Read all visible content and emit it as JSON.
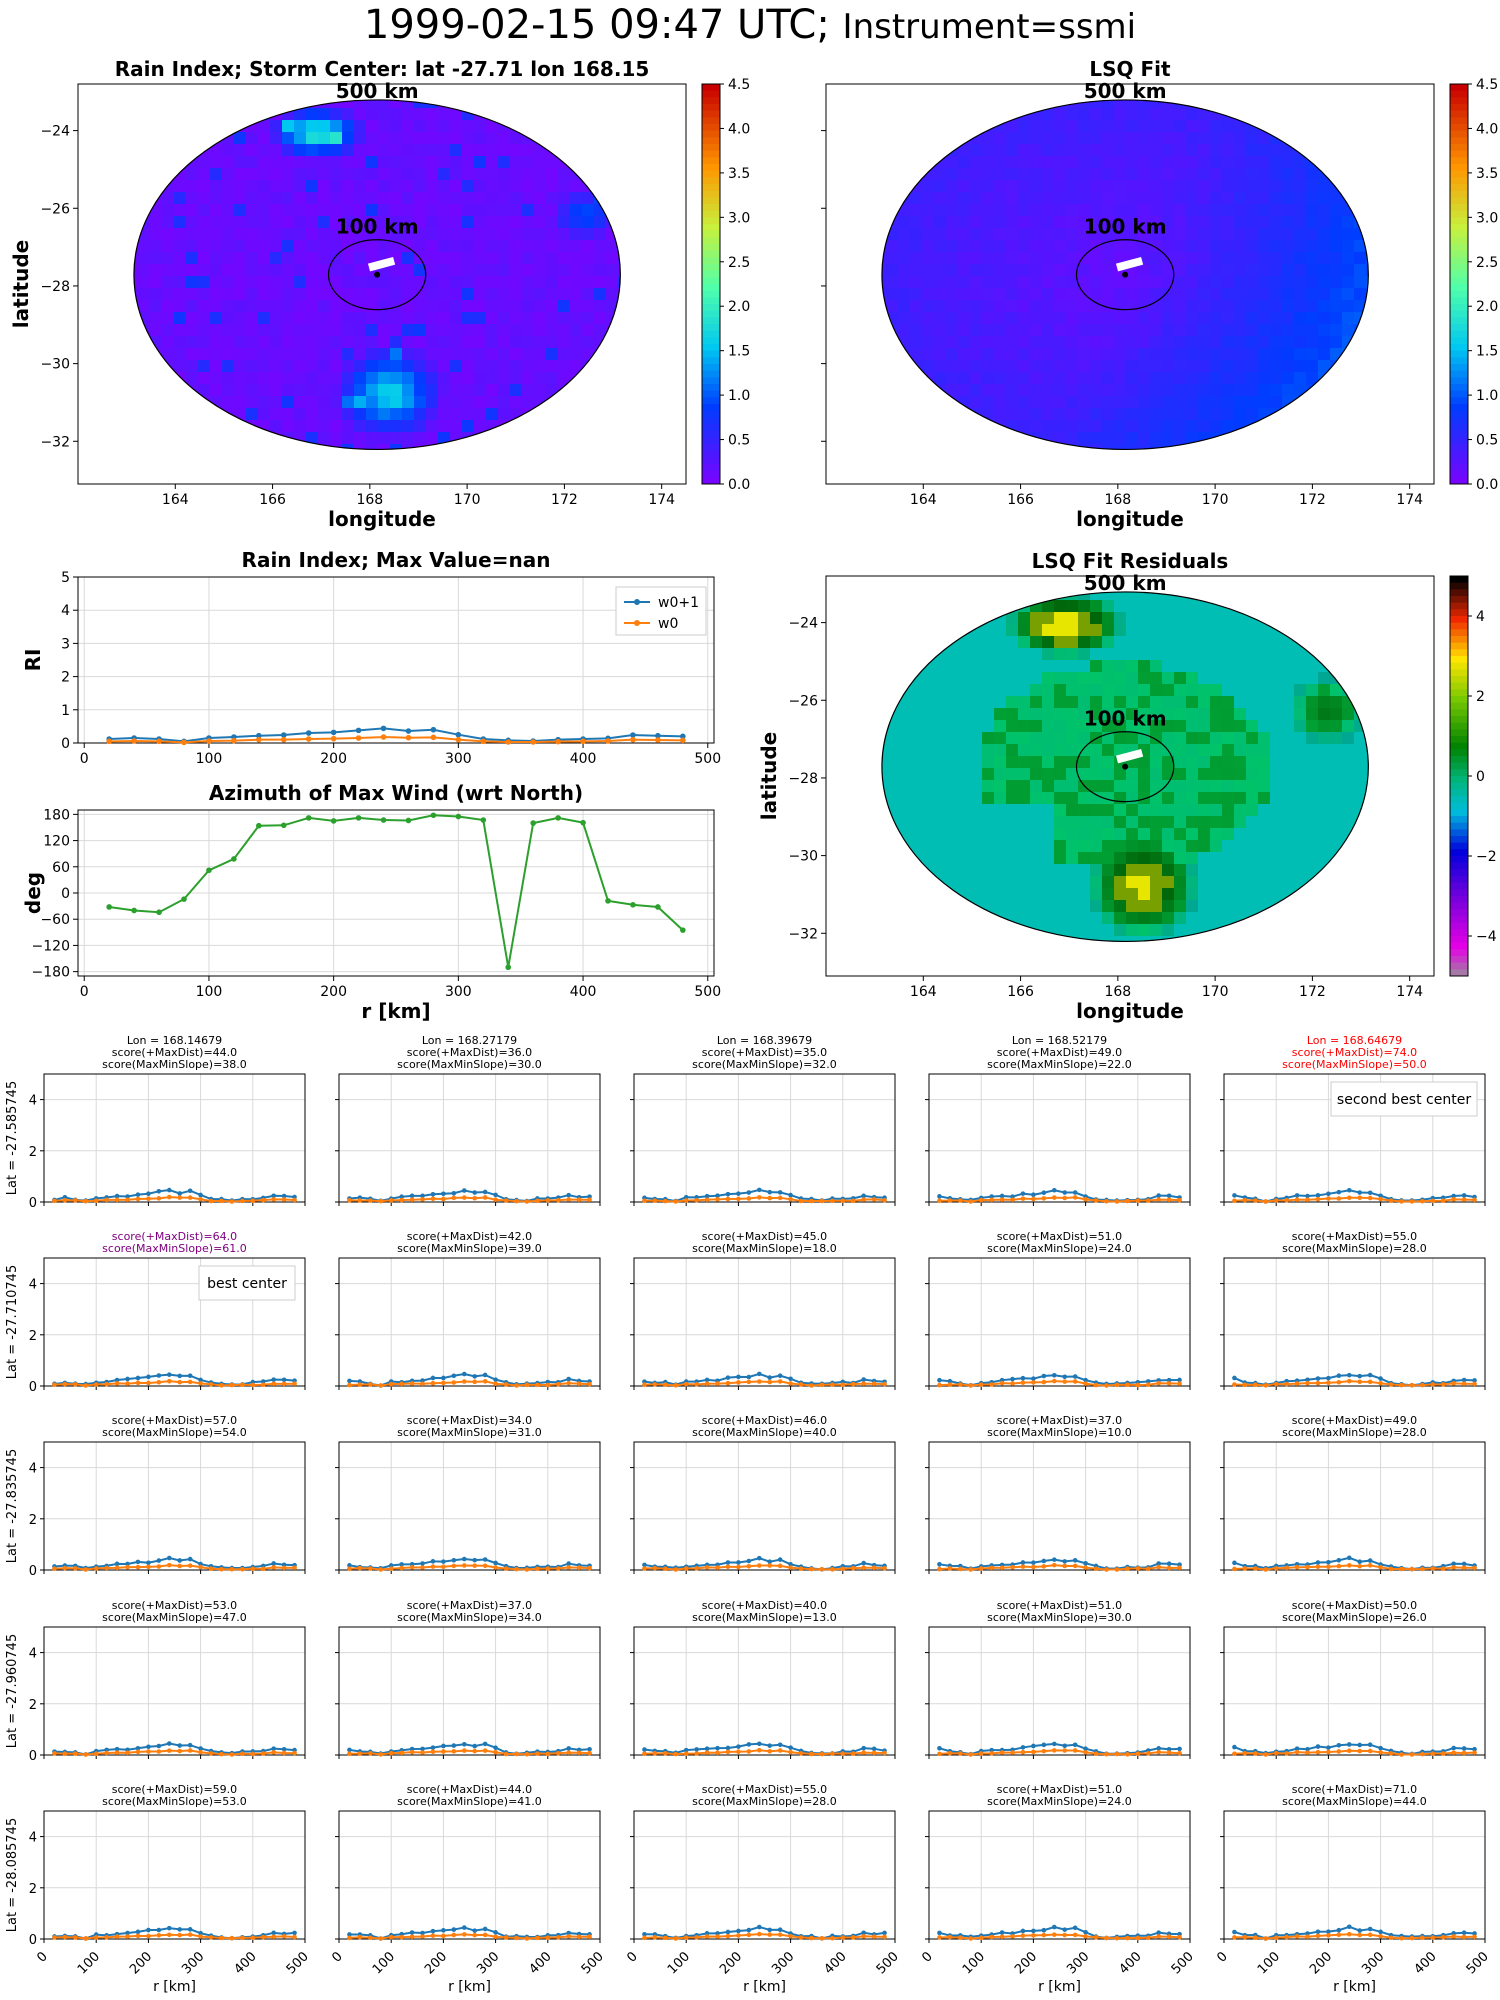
{
  "suptitle": {
    "datetime": "1999-02-15 09:47 UTC;",
    "instrument": "Instrument=ssmi"
  },
  "colors": {
    "w0p1": "#1f77b4",
    "w0": "#ff7f0e",
    "azimuth": "#2ca02c",
    "panel_bg_fill": "#7a18f0",
    "highlight_red": "#ff0000",
    "highlight_purple": "#800080"
  },
  "map_common": {
    "lon_ticks": [
      "164",
      "166",
      "168",
      "170",
      "172",
      "174"
    ],
    "lat_ticks": [
      "-24",
      "-26",
      "-28",
      "-30",
      "-32"
    ],
    "xlabel": "longitude",
    "ylabel": "latitude",
    "ring_labels": [
      "500 km",
      "100 km"
    ],
    "xlim": [
      162.0,
      174.5
    ],
    "ylim": [
      -33.1,
      -22.8
    ],
    "center": {
      "lon": 168.15,
      "lat": -27.71
    }
  },
  "rain_map": {
    "title": "Rain Index; Storm Center: lat -27.71 lon 168.15",
    "colorbar_ticks": [
      "0.0",
      "0.5",
      "1.0",
      "1.5",
      "2.0",
      "2.5",
      "3.0",
      "3.5",
      "4.0",
      "4.5"
    ],
    "colormap": "rainbow",
    "clim": [
      0,
      4.5
    ]
  },
  "fit_map": {
    "title": "LSQ Fit",
    "colorbar_ticks": [
      "0.0",
      "0.5",
      "1.0",
      "1.5",
      "2.0",
      "2.5",
      "3.0",
      "3.5",
      "4.0",
      "4.5"
    ],
    "colormap": "rainbow",
    "clim": [
      0,
      4.5
    ]
  },
  "resid_map": {
    "title": "LSQ Fit Residuals",
    "colorbar_ticks": [
      "4",
      "2",
      "0",
      "−2",
      "−4"
    ],
    "colormap": "diverging",
    "clim": [
      -5,
      5
    ]
  },
  "chart_data": [
    {
      "type": "line",
      "title": "Rain Index; Max Value=nan",
      "xlabel": "",
      "ylabel": "RI",
      "xlim": [
        -5,
        505
      ],
      "ylim": [
        0,
        5
      ],
      "grid": true,
      "legend_position": "top-right",
      "x": [
        20,
        40,
        60,
        80,
        100,
        120,
        140,
        160,
        180,
        200,
        220,
        240,
        260,
        280,
        300,
        320,
        340,
        360,
        380,
        400,
        420,
        440,
        460,
        480
      ],
      "series": [
        {
          "name": "w0+1",
          "marker": "star",
          "values": [
            0.12,
            0.15,
            0.12,
            0.05,
            0.15,
            0.18,
            0.22,
            0.24,
            0.3,
            0.32,
            0.38,
            0.44,
            0.36,
            0.4,
            0.25,
            0.12,
            0.08,
            0.06,
            0.1,
            0.12,
            0.14,
            0.24,
            0.22,
            0.2
          ]
        },
        {
          "name": "w0",
          "marker": "dot",
          "values": [
            0.05,
            0.06,
            0.05,
            0.02,
            0.06,
            0.07,
            0.1,
            0.1,
            0.12,
            0.13,
            0.15,
            0.18,
            0.16,
            0.17,
            0.1,
            0.05,
            0.03,
            0.03,
            0.04,
            0.05,
            0.06,
            0.1,
            0.09,
            0.08
          ]
        }
      ],
      "xticks": [
        "0",
        "100",
        "200",
        "300",
        "400",
        "500"
      ],
      "yticks": [
        "0",
        "1",
        "2",
        "3",
        "4",
        "5"
      ]
    },
    {
      "type": "line",
      "title": "Azimuth of Max Wind (wrt North)",
      "xlabel": "r [km]",
      "ylabel": "deg",
      "xlim": [
        -5,
        505
      ],
      "ylim": [
        -190,
        190
      ],
      "grid": true,
      "x": [
        20,
        40,
        60,
        80,
        100,
        120,
        140,
        160,
        180,
        200,
        220,
        240,
        260,
        280,
        300,
        320,
        340,
        360,
        380,
        400,
        420,
        440,
        460,
        480
      ],
      "series": [
        {
          "name": "",
          "values": [
            -32,
            -40,
            -44,
            -14,
            52,
            78,
            154,
            155,
            172,
            165,
            172,
            167,
            166,
            178,
            175,
            167,
            -170,
            160,
            172,
            161,
            -18,
            -27,
            -32,
            -85
          ]
        }
      ],
      "xticks": [
        "0",
        "100",
        "200",
        "300",
        "400",
        "500"
      ],
      "yticks": [
        "180",
        "120",
        "60",
        "0",
        "-60",
        "-120",
        "-180"
      ]
    }
  ],
  "grid_panels": {
    "ylabels": [
      "Lat = -27.585745",
      "Lat = -27.710745",
      "Lat = -27.835745",
      "Lat = -27.960745",
      "Lat = -28.085745"
    ],
    "xlabel": "r [km]",
    "xticks": [
      "0",
      "100",
      "200",
      "300",
      "400",
      "500"
    ],
    "yticks": [
      "0",
      "2",
      "4"
    ],
    "xlim": [
      0,
      500
    ],
    "ylim": [
      0,
      5
    ],
    "titles": [
      [
        [
          "Lon = 168.14679",
          "score(+MaxDist)=44.0",
          "score(MaxMinSlope)=38.0"
        ],
        [
          "Lon = 168.27179",
          "score(+MaxDist)=36.0",
          "score(MaxMinSlope)=30.0"
        ],
        [
          "Lon = 168.39679",
          "score(+MaxDist)=35.0",
          "score(MaxMinSlope)=32.0"
        ],
        [
          "Lon = 168.52179",
          "score(+MaxDist)=49.0",
          "score(MaxMinSlope)=22.0"
        ],
        [
          "Lon = 168.64679",
          "score(+MaxDist)=74.0",
          "score(MaxMinSlope)=50.0"
        ]
      ],
      [
        [
          "score(+MaxDist)=64.0",
          "score(MaxMinSlope)=61.0"
        ],
        [
          "score(+MaxDist)=42.0",
          "score(MaxMinSlope)=39.0"
        ],
        [
          "score(+MaxDist)=45.0",
          "score(MaxMinSlope)=18.0"
        ],
        [
          "score(+MaxDist)=51.0",
          "score(MaxMinSlope)=24.0"
        ],
        [
          "score(+MaxDist)=55.0",
          "score(MaxMinSlope)=28.0"
        ]
      ],
      [
        [
          "score(+MaxDist)=57.0",
          "score(MaxMinSlope)=54.0"
        ],
        [
          "score(+MaxDist)=34.0",
          "score(MaxMinSlope)=31.0"
        ],
        [
          "score(+MaxDist)=46.0",
          "score(MaxMinSlope)=40.0"
        ],
        [
          "score(+MaxDist)=37.0",
          "score(MaxMinSlope)=10.0"
        ],
        [
          "score(+MaxDist)=49.0",
          "score(MaxMinSlope)=28.0"
        ]
      ],
      [
        [
          "score(+MaxDist)=53.0",
          "score(MaxMinSlope)=47.0"
        ],
        [
          "score(+MaxDist)=37.0",
          "score(MaxMinSlope)=34.0"
        ],
        [
          "score(+MaxDist)=40.0",
          "score(MaxMinSlope)=13.0"
        ],
        [
          "score(+MaxDist)=51.0",
          "score(MaxMinSlope)=30.0"
        ],
        [
          "score(+MaxDist)=50.0",
          "score(MaxMinSlope)=26.0"
        ]
      ],
      [
        [
          "score(+MaxDist)=59.0",
          "score(MaxMinSlope)=53.0"
        ],
        [
          "score(+MaxDist)=44.0",
          "score(MaxMinSlope)=41.0"
        ],
        [
          "score(+MaxDist)=55.0",
          "score(MaxMinSlope)=28.0"
        ],
        [
          "score(+MaxDist)=51.0",
          "score(MaxMinSlope)=24.0"
        ],
        [
          "score(+MaxDist)=71.0",
          "score(MaxMinSlope)=44.0"
        ]
      ]
    ],
    "highlight": {
      "best": {
        "row": 1,
        "col": 0,
        "label": "best center",
        "color": "purple"
      },
      "second": {
        "row": 0,
        "col": 4,
        "label": "second best center",
        "color": "red"
      }
    }
  }
}
